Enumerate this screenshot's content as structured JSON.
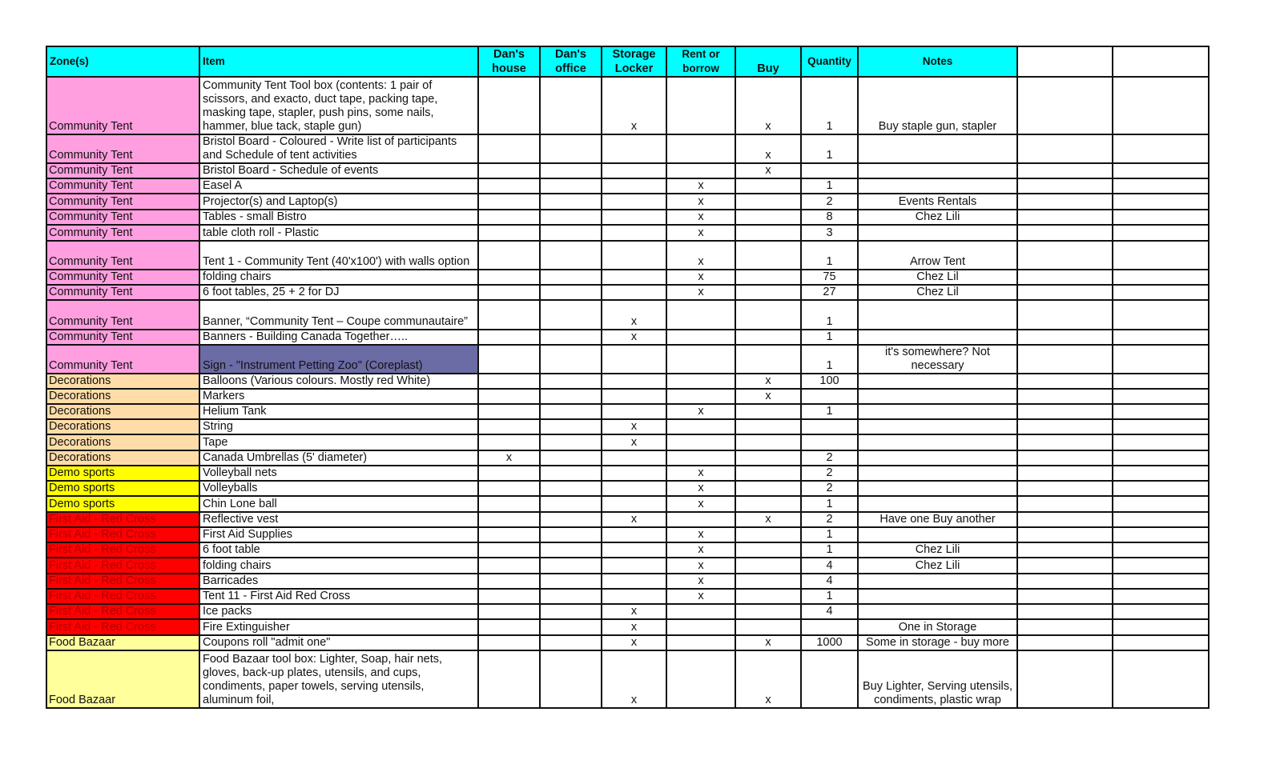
{
  "colors": {
    "header": "#00ffff",
    "Community Tent": "#ff9fe0",
    "Decorations": "#ffdca8",
    "Demo sports": "#ffff00",
    "First Aid - Red Cross": "#ff0000",
    "Food Bazaar": "#ffff9c",
    "highlight_item": "#6b6ba6",
    "first_aid_text": "#b00000"
  },
  "headers": [
    "Zone(s)",
    "Item",
    "Dan's house",
    "Dan's office",
    "Storage Locker",
    "Rent or borrow",
    "Buy",
    "Quantity",
    "Notes",
    "",
    ""
  ],
  "rows": [
    {
      "zone": "Community Tent",
      "item": "Community Tent Tool box (contents: 1 pair of scissors, and exacto, duct tape, packing tape, masking tape, stapler, push pins, some nails, hammer, blue tack, staple gun)",
      "house": "",
      "office": "",
      "storage": "x",
      "rent": "",
      "buy": "x",
      "qty": "1",
      "notes": "Buy staple gun, stapler"
    },
    {
      "zone": "Community Tent",
      "item": "Bristol Board - Coloured - Write list of participants and Schedule of tent activities",
      "house": "",
      "office": "",
      "storage": "",
      "rent": "",
      "buy": "x",
      "qty": "1",
      "notes": ""
    },
    {
      "zone": "Community Tent",
      "item": "Bristol Board - Schedule of events",
      "house": "",
      "office": "",
      "storage": "",
      "rent": "",
      "buy": "x",
      "qty": "",
      "notes": ""
    },
    {
      "zone": "Community Tent",
      "item": "Easel A",
      "house": "",
      "office": "",
      "storage": "",
      "rent": "x",
      "buy": "",
      "qty": "1",
      "notes": ""
    },
    {
      "zone": "Community Tent",
      "item": "Projector(s) and Laptop(s)",
      "house": "",
      "office": "",
      "storage": "",
      "rent": "x",
      "buy": "",
      "qty": "2",
      "notes": "Events Rentals"
    },
    {
      "zone": "Community Tent",
      "item": "Tables - small Bistro",
      "house": "",
      "office": "",
      "storage": "",
      "rent": "x",
      "buy": "",
      "qty": "8",
      "notes": "Chez Lili"
    },
    {
      "zone": "Community Tent",
      "item": "table cloth roll - Plastic",
      "house": "",
      "office": "",
      "storage": "",
      "rent": "x",
      "buy": "",
      "qty": "3",
      "notes": ""
    },
    {
      "zone": "Community Tent",
      "item": "Tent 1 - Community Tent (40'x100') with walls option",
      "house": "",
      "office": "",
      "storage": "",
      "rent": "x",
      "buy": "",
      "qty": "1",
      "notes": "Arrow Tent"
    },
    {
      "zone": "Community Tent",
      "item": "folding chairs",
      "house": "",
      "office": "",
      "storage": "",
      "rent": "x",
      "buy": "",
      "qty": "75",
      "notes": "Chez Lil"
    },
    {
      "zone": "Community Tent",
      "item": "6 foot tables, 25 + 2 for DJ",
      "house": "",
      "office": "",
      "storage": "",
      "rent": "x",
      "buy": "",
      "qty": "27",
      "notes": "Chez Lil"
    },
    {
      "zone": "Community Tent",
      "item": "Banner, “Community Tent – Coupe communautaire”",
      "house": "",
      "office": "",
      "storage": "x",
      "rent": "",
      "buy": "",
      "qty": "1",
      "notes": ""
    },
    {
      "zone": "Community Tent",
      "item": "Banners - Building Canada Together…..",
      "house": "",
      "office": "",
      "storage": "x",
      "rent": "",
      "buy": "",
      "qty": "1",
      "notes": ""
    },
    {
      "zone": "Community Tent",
      "item": "Sign  - \"Instrument Petting Zoo\"  (Coreplast)",
      "house": "",
      "office": "",
      "storage": "",
      "rent": "",
      "buy": "",
      "qty": "1",
      "notes": "it's somewhere? Not necessary",
      "highlight": true
    },
    {
      "zone": "Decorations",
      "item": "Balloons (Various colours. Mostly red White)",
      "house": "",
      "office": "",
      "storage": "",
      "rent": "",
      "buy": "x",
      "qty": "100",
      "notes": ""
    },
    {
      "zone": "Decorations",
      "item": "Markers",
      "house": "",
      "office": "",
      "storage": "",
      "rent": "",
      "buy": "x",
      "qty": "",
      "notes": ""
    },
    {
      "zone": "Decorations",
      "item": "Helium Tank",
      "house": "",
      "office": "",
      "storage": "",
      "rent": "x",
      "buy": "",
      "qty": "1",
      "notes": ""
    },
    {
      "zone": "Decorations",
      "item": "String",
      "house": "",
      "office": "",
      "storage": "x",
      "rent": "",
      "buy": "",
      "qty": "",
      "notes": ""
    },
    {
      "zone": "Decorations",
      "item": "Tape",
      "house": "",
      "office": "",
      "storage": "x",
      "rent": "",
      "buy": "",
      "qty": "",
      "notes": ""
    },
    {
      "zone": "Decorations",
      "item": "Canada Umbrellas (5' diameter)",
      "house": "x",
      "office": "",
      "storage": "",
      "rent": "",
      "buy": "",
      "qty": "2",
      "notes": ""
    },
    {
      "zone": "Demo sports",
      "item": "Volleyball nets",
      "house": "",
      "office": "",
      "storage": "",
      "rent": "x",
      "buy": "",
      "qty": "2",
      "notes": ""
    },
    {
      "zone": "Demo sports",
      "item": "Volleyballs",
      "house": "",
      "office": "",
      "storage": "",
      "rent": "x",
      "buy": "",
      "qty": "2",
      "notes": ""
    },
    {
      "zone": "Demo sports",
      "item": "Chin Lone ball",
      "house": "",
      "office": "",
      "storage": "",
      "rent": "x",
      "buy": "",
      "qty": "1",
      "notes": ""
    },
    {
      "zone": "First Aid - Red Cross",
      "item": "Reflective vest",
      "house": "",
      "office": "",
      "storage": "x",
      "rent": "",
      "buy": "x",
      "qty": "2",
      "notes": "Have one Buy another"
    },
    {
      "zone": "First Aid - Red Cross",
      "item": "First Aid Supplies",
      "house": "",
      "office": "",
      "storage": "",
      "rent": "x",
      "buy": "",
      "qty": "1",
      "notes": ""
    },
    {
      "zone": "First Aid - Red Cross",
      "item": "6 foot table",
      "house": "",
      "office": "",
      "storage": "",
      "rent": "x",
      "buy": "",
      "qty": "1",
      "notes": "Chez Lili"
    },
    {
      "zone": "First Aid - Red Cross",
      "item": "folding chairs",
      "house": "",
      "office": "",
      "storage": "",
      "rent": "x",
      "buy": "",
      "qty": "4",
      "notes": "Chez Lili"
    },
    {
      "zone": "First Aid - Red Cross",
      "item": "Barricades",
      "house": "",
      "office": "",
      "storage": "",
      "rent": "x",
      "buy": "",
      "qty": "4",
      "notes": ""
    },
    {
      "zone": "First Aid - Red Cross",
      "item": "Tent 11 - First Aid Red Cross",
      "house": "",
      "office": "",
      "storage": "",
      "rent": "x",
      "buy": "",
      "qty": "1",
      "notes": ""
    },
    {
      "zone": "First Aid - Red Cross",
      "item": "Ice packs",
      "house": "",
      "office": "",
      "storage": "x",
      "rent": "",
      "buy": "",
      "qty": "4",
      "notes": ""
    },
    {
      "zone": "First Aid - Red Cross",
      "item": "Fire Extinguisher",
      "house": "",
      "office": "",
      "storage": "x",
      "rent": "",
      "buy": "",
      "qty": "",
      "notes": "One in Storage"
    },
    {
      "zone": "Food Bazaar",
      "item": "Coupons roll \"admit one\"",
      "house": "",
      "office": "",
      "storage": "x",
      "rent": "",
      "buy": "x",
      "qty": "1000",
      "notes": "Some in storage - buy more"
    },
    {
      "zone": "Food Bazaar",
      "item": "Food Bazaar tool box: Lighter, Soap, hair nets, gloves, back-up plates, utensils, and cups, condiments, paper towels, serving utensils,  aluminum foil,",
      "house": "",
      "office": "",
      "storage": "x",
      "rent": "",
      "buy": "x",
      "qty": "",
      "notes": "Buy Lighter, Serving utensils, condiments, plastic wrap"
    }
  ]
}
